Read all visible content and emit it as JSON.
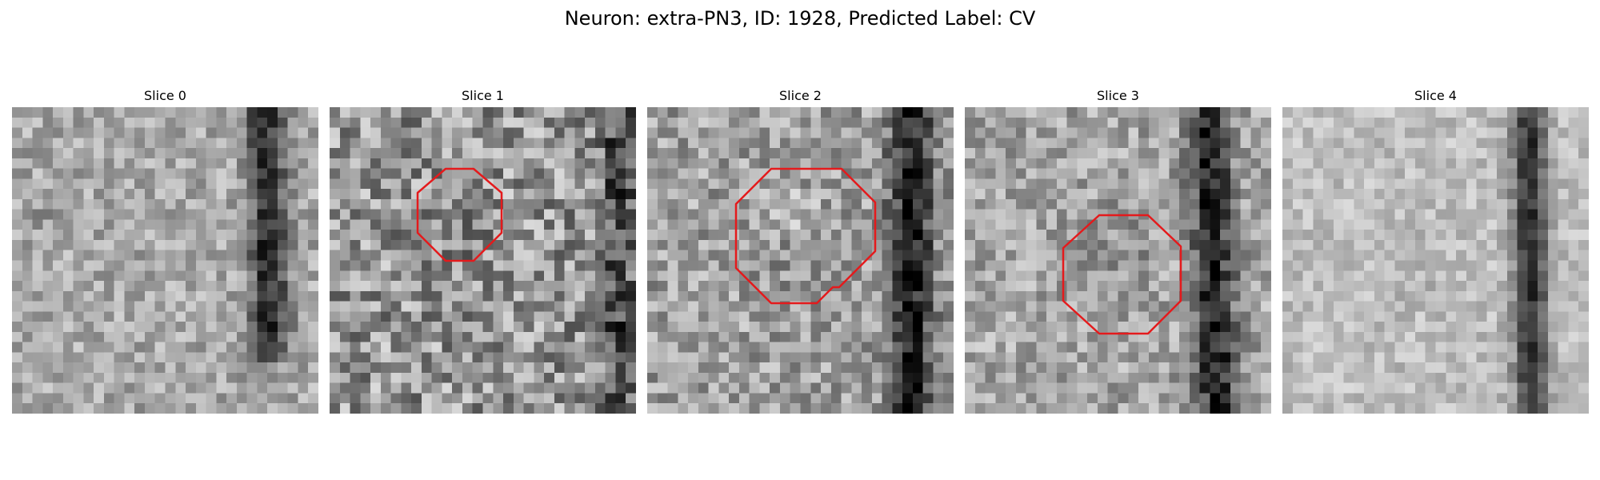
{
  "title": "Neuron: extra-PN3, ID: 1928, Predicted Label: CV",
  "colors": {
    "background": "#ffffff",
    "outline": "#e41a1c"
  },
  "slices": [
    {
      "label": "Slice 0",
      "has_outline": false
    },
    {
      "label": "Slice 1",
      "has_outline": true
    },
    {
      "label": "Slice 2",
      "has_outline": true
    },
    {
      "label": "Slice 3",
      "has_outline": true
    },
    {
      "label": "Slice 4",
      "has_outline": false
    }
  ]
}
